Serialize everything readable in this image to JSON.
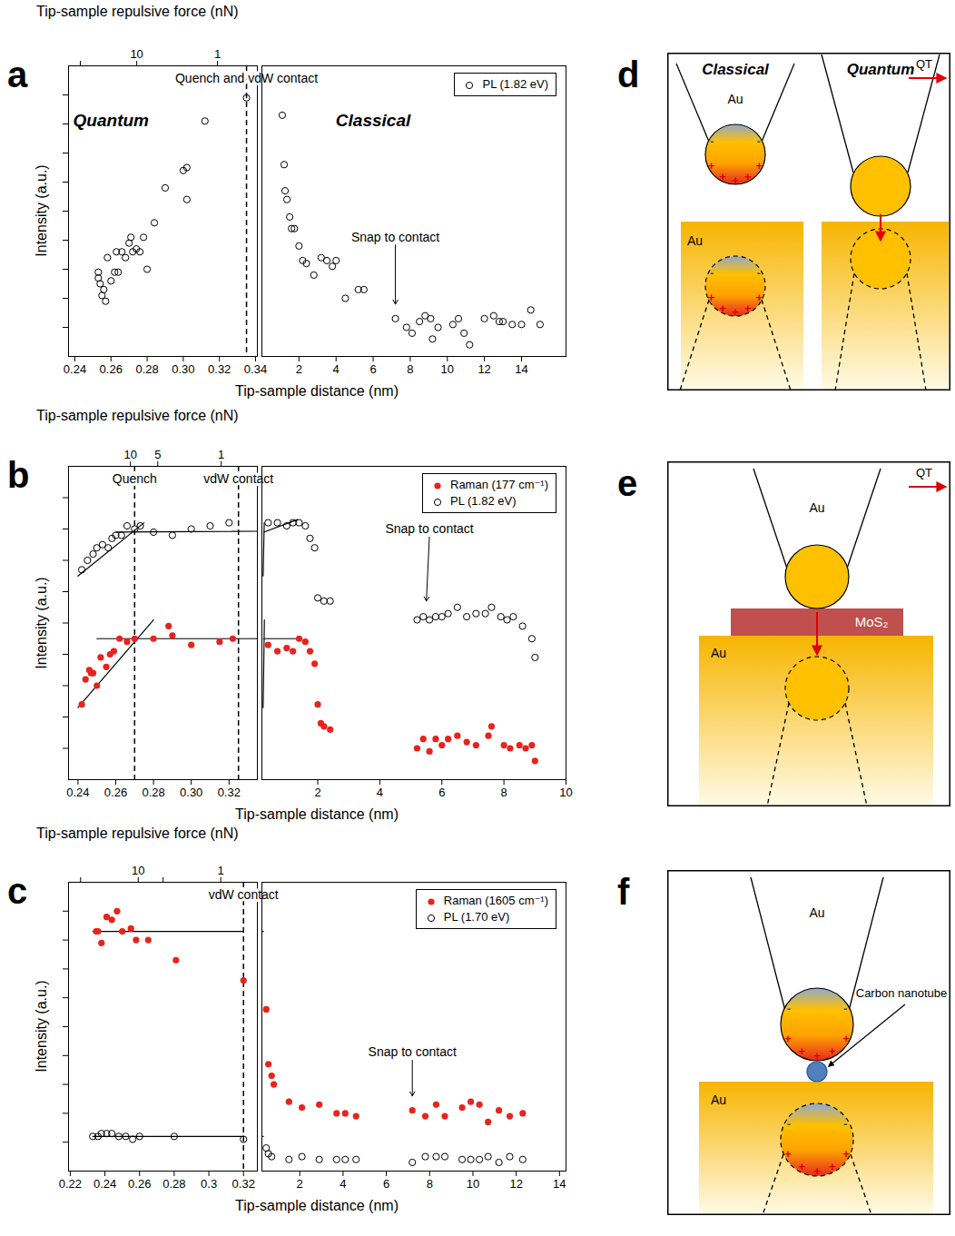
{
  "chart_data": [
    {
      "panel": "a",
      "type": "scatter",
      "x_label": "Tip-sample distance (nm)",
      "y_label": "Intensity (a.u.)",
      "x2_axis": {
        "label": "Tip-sample repulsive force (nN)",
        "log": true,
        "lim": [
          70,
          0.32
        ],
        "ticks": [
          50,
          10,
          1
        ]
      },
      "x_segments": [
        {
          "xlim": [
            0.2365,
            0.341
          ],
          "xticks": [
            0.24,
            0.26,
            0.28,
            {
              "value": 0.3,
              "label": "0.30"
            },
            0.32,
            0.34
          ]
        },
        {
          "xlim": [
            0,
            16.4
          ],
          "xticks": [
            2,
            4,
            6,
            8,
            10,
            12,
            14
          ]
        }
      ],
      "ylim": [
        0,
        10
      ],
      "yticks": [
        1,
        2,
        3,
        4,
        5,
        6,
        7,
        8,
        9
      ],
      "tick_labels": "x",
      "legend": "top-right",
      "series": [
        {
          "name": "PL (1.82 eV)",
          "color": "#000000",
          "marker": "circle_open",
          "x": [
            0.253,
            0.253,
            0.254,
            0.256,
            0.255,
            0.257,
            0.258,
            0.26,
            0.262,
            0.263,
            0.264,
            0.266,
            0.268,
            0.27,
            0.271,
            0.272,
            0.274,
            0.276,
            0.278,
            0.28,
            0.284,
            0.29,
            0.3,
            0.302,
            0.302,
            0.312,
            0.335,
            1.1,
            1.2,
            1.25,
            1.35,
            1.5,
            1.6,
            1.75,
            2.0,
            2.2,
            2.4,
            2.8,
            3.2,
            3.5,
            3.8,
            4.0,
            4.5,
            5.2,
            5.5,
            7.2,
            7.8,
            8.1,
            8.5,
            8.8,
            9.1,
            9.2,
            9.5,
            10.3,
            10.6,
            10.9,
            11.2,
            12.0,
            12.5,
            12.8,
            13.0,
            13.5,
            14.0,
            14.5,
            15.0
          ],
          "values": [
            2.9,
            2.7,
            2.5,
            2.3,
            2.1,
            1.9,
            3.4,
            2.6,
            2.9,
            3.6,
            2.9,
            3.6,
            3.4,
            3.9,
            4.1,
            3.6,
            3.7,
            3.6,
            4.1,
            3.0,
            4.6,
            5.8,
            6.4,
            6.5,
            5.4,
            8.1,
            8.9,
            8.3,
            6.6,
            5.7,
            5.4,
            4.8,
            4.4,
            4.4,
            3.8,
            3.3,
            3.2,
            2.8,
            3.4,
            3.3,
            3.1,
            3.3,
            2.0,
            2.3,
            2.3,
            1.3,
            1.0,
            0.8,
            1.2,
            1.4,
            1.3,
            0.6,
            1.0,
            1.1,
            1.3,
            0.8,
            0.4,
            1.3,
            1.4,
            1.2,
            1.2,
            1.1,
            1.1,
            1.6,
            1.1
          ]
        }
      ],
      "vlines": [
        {
          "x": 0.335,
          "label": "Quench and vdW contact"
        }
      ],
      "annotations": [
        {
          "text": "Quantum",
          "x": 0.26,
          "y": 8.1
        },
        {
          "text": "Classical",
          "x": 6,
          "y": 8.1
        },
        {
          "text": "Snap to contact",
          "x": 7.2,
          "y": 3.9,
          "arrow_x": 7.2,
          "arrow_y": 1.8
        }
      ]
    },
    {
      "panel": "b",
      "type": "scatter",
      "x_label": "Tip-sample distance (nm)",
      "y_label": "Intensity (a.u.)",
      "x2_axis": {
        "label": "Tip-sample repulsive force (nN)",
        "log": true,
        "lim": [
          48,
          0.4
        ],
        "ticks": [
          10,
          5,
          1
        ]
      },
      "x_segments": [
        {
          "xlim": [
            0.235,
            0.335
          ],
          "xticks": [
            0.24,
            0.26,
            0.28,
            {
              "value": 0.3,
              "label": "0.30"
            },
            0.32
          ]
        },
        {
          "xlim": [
            0.2,
            10
          ],
          "xticks": [
            2,
            4,
            6,
            8,
            10
          ]
        }
      ],
      "ylim": [
        0,
        10
      ],
      "yticks": [
        1,
        2,
        3,
        4,
        5,
        6,
        7,
        8,
        9
      ],
      "tick_labels": "x",
      "legend": "top-right",
      "series": [
        {
          "name": "Raman (177 cm⁻¹)",
          "color": "#e8231e",
          "marker": "circle",
          "x": [
            0.242,
            0.244,
            0.246,
            0.247,
            0.248,
            0.25,
            0.252,
            0.255,
            0.257,
            0.259,
            0.262,
            0.266,
            0.27,
            0.28,
            0.288,
            0.29,
            0.3,
            0.315,
            0.322,
            0.4,
            0.7,
            1.0,
            1.2,
            1.4,
            1.6,
            1.75,
            1.9,
            2.0,
            2.1,
            2.2,
            2.4,
            5.2,
            5.4,
            5.6,
            5.8,
            6.0,
            6.2,
            6.5,
            6.8,
            7.1,
            7.5,
            7.6,
            8.0,
            8.2,
            8.5,
            8.7,
            8.9,
            9.0
          ],
          "values": [
            2.4,
            3.2,
            3.5,
            3.4,
            3.4,
            3.0,
            3.9,
            3.6,
            4.0,
            4.1,
            4.5,
            4.4,
            4.5,
            4.5,
            4.9,
            4.6,
            4.3,
            4.4,
            4.5,
            4.3,
            4.1,
            4.2,
            4.1,
            4.5,
            4.4,
            4.1,
            3.7,
            2.4,
            1.8,
            1.7,
            1.6,
            1.0,
            1.3,
            0.9,
            1.3,
            1.1,
            1.3,
            1.4,
            1.2,
            1.1,
            1.4,
            1.7,
            1.1,
            1.0,
            1.1,
            1.0,
            1.1,
            0.6
          ]
        },
        {
          "name": "PL (1.82 eV)",
          "color": "#000000",
          "marker": "circle_open",
          "x": [
            0.242,
            0.245,
            0.248,
            0.25,
            0.253,
            0.256,
            0.258,
            0.26,
            0.263,
            0.266,
            0.27,
            0.273,
            0.28,
            0.29,
            0.3,
            0.31,
            0.32,
            0.4,
            0.7,
            1.0,
            1.2,
            1.4,
            1.6,
            1.75,
            1.9,
            2.0,
            2.2,
            2.4,
            5.2,
            5.4,
            5.6,
            5.8,
            6.0,
            6.2,
            6.5,
            6.8,
            7.1,
            7.4,
            7.6,
            7.9,
            8.1,
            8.3,
            8.6,
            8.9,
            9.0
          ],
          "values": [
            6.7,
            7.0,
            7.2,
            7.4,
            7.5,
            7.4,
            7.7,
            7.8,
            7.8,
            8.1,
            8.0,
            8.1,
            7.9,
            7.8,
            8.0,
            8.1,
            8.2,
            8.2,
            8.2,
            8.1,
            8.2,
            8.2,
            8.1,
            7.7,
            7.4,
            5.8,
            5.7,
            5.7,
            5.1,
            5.2,
            5.1,
            5.2,
            5.2,
            5.3,
            5.5,
            5.2,
            5.3,
            5.3,
            5.5,
            5.2,
            5.1,
            5.2,
            4.9,
            4.5,
            3.9
          ]
        }
      ],
      "fit_lines": [
        {
          "x": [
            0.24,
            0.275
          ],
          "values": [
            6.5,
            8.2
          ]
        },
        {
          "x": [
            0.26,
            1.35
          ],
          "values": [
            7.9,
            8.3
          ]
        },
        {
          "x": [
            0.24,
            0.28
          ],
          "values": [
            2.3,
            5.1
          ]
        },
        {
          "x": [
            0.25,
            1.3
          ],
          "values": [
            4.5,
            4.5
          ]
        }
      ],
      "vlines": [
        {
          "x": 0.27,
          "label": "Quench"
        },
        {
          "x": 0.325,
          "label": "vdW contact"
        }
      ],
      "annotations": [
        {
          "text": "Snap to contact",
          "x": 5.6,
          "y": 7.8,
          "arrow_x": 5.5,
          "arrow_y": 5.7
        }
      ]
    },
    {
      "panel": "c",
      "type": "scatter",
      "x_label": "Tip-sample distance (nm)",
      "y_label": "Intensity (a.u.)",
      "x2_axis": {
        "label": "Tip-sample repulsive force (nN)",
        "log": true,
        "lim": [
          70,
          0.36
        ],
        "ticks": [
          50,
          10,
          5,
          1
        ]
      },
      "x_segments": [
        {
          "xlim": [
            0.219,
            0.328
          ],
          "xticks": [
            0.22,
            0.24,
            0.26,
            0.28,
            0.3,
            0.32
          ]
        },
        {
          "xlim": [
            0.25,
            14.3
          ],
          "xticks": [
            2,
            4,
            6,
            8,
            10,
            12,
            14
          ]
        }
      ],
      "ylim": [
        0,
        10
      ],
      "yticks": [
        1,
        2,
        3,
        4,
        5,
        6,
        7,
        8,
        9
      ],
      "tick_labels": "x",
      "legend": "top-right",
      "series": [
        {
          "name": "Raman (1605 cm⁻¹)",
          "color": "#e8231e",
          "marker": "circle",
          "x": [
            0.235,
            0.236,
            0.238,
            0.241,
            0.244,
            0.247,
            0.25,
            0.255,
            0.258,
            0.265,
            0.281,
            0.32,
            0.45,
            0.55,
            0.7,
            0.8,
            1.5,
            2.1,
            2.9,
            3.7,
            4.1,
            4.6,
            7.2,
            7.8,
            8.3,
            8.7,
            9.5,
            9.9,
            10.3,
            10.7,
            11.2,
            11.7,
            12.3
          ],
          "values": [
            8.3,
            8.3,
            7.9,
            8.8,
            8.7,
            9.0,
            8.3,
            8.4,
            8.0,
            8.0,
            7.3,
            6.6,
            5.6,
            3.7,
            3.3,
            3.0,
            2.4,
            2.2,
            2.3,
            2.0,
            2.0,
            1.9,
            2.1,
            1.9,
            2.3,
            1.9,
            2.2,
            2.4,
            2.3,
            1.7,
            2.1,
            1.9,
            2.0
          ]
        },
        {
          "name": "PL (1.70 eV)",
          "color": "#000000",
          "marker": "circle_open",
          "x": [
            0.233,
            0.236,
            0.238,
            0.241,
            0.244,
            0.248,
            0.252,
            0.256,
            0.26,
            0.28,
            0.32,
            0.45,
            0.55,
            0.7,
            1.5,
            2.1,
            2.9,
            3.7,
            4.1,
            4.6,
            7.2,
            7.8,
            8.3,
            8.7,
            9.5,
            9.9,
            10.3,
            10.7,
            11.2,
            11.7,
            12.3
          ],
          "values": [
            1.2,
            1.2,
            1.3,
            1.3,
            1.3,
            1.2,
            1.2,
            1.1,
            1.2,
            1.2,
            1.1,
            0.8,
            0.6,
            0.5,
            0.4,
            0.5,
            0.4,
            0.4,
            0.4,
            0.4,
            0.3,
            0.5,
            0.5,
            0.5,
            0.4,
            0.4,
            0.4,
            0.5,
            0.3,
            0.5,
            0.4
          ]
        }
      ],
      "fit_lines": [
        {
          "x": [
            0.233,
            0.32
          ],
          "values": [
            8.3,
            8.3
          ]
        },
        {
          "x": [
            0.233,
            0.32
          ],
          "values": [
            1.2,
            1.2
          ]
        }
      ],
      "vlines": [
        {
          "x": 0.32,
          "label": "vdW contact"
        }
      ],
      "annotations": [
        {
          "text": "Snap to contact",
          "x": 7.2,
          "y": 3.9,
          "arrow_x": 7.2,
          "arrow_y": 2.6
        }
      ]
    }
  ],
  "diagrams": [
    {
      "panel": "d",
      "titles": [
        "Classical",
        "Quantum"
      ],
      "tip_label": "Au",
      "substrate_label": "Au",
      "arrow_label": "QT",
      "charges": [
        "+",
        "-"
      ]
    },
    {
      "panel": "e",
      "tip_label": "Au",
      "substrate_label": "Au",
      "arrow_label": "QT",
      "layer_label": "MoS₂"
    },
    {
      "panel": "f",
      "tip_label": "Au",
      "substrate_label": "Au",
      "particle_label": "Carbon nanotube",
      "charges": [
        "+",
        "-"
      ]
    }
  ]
}
